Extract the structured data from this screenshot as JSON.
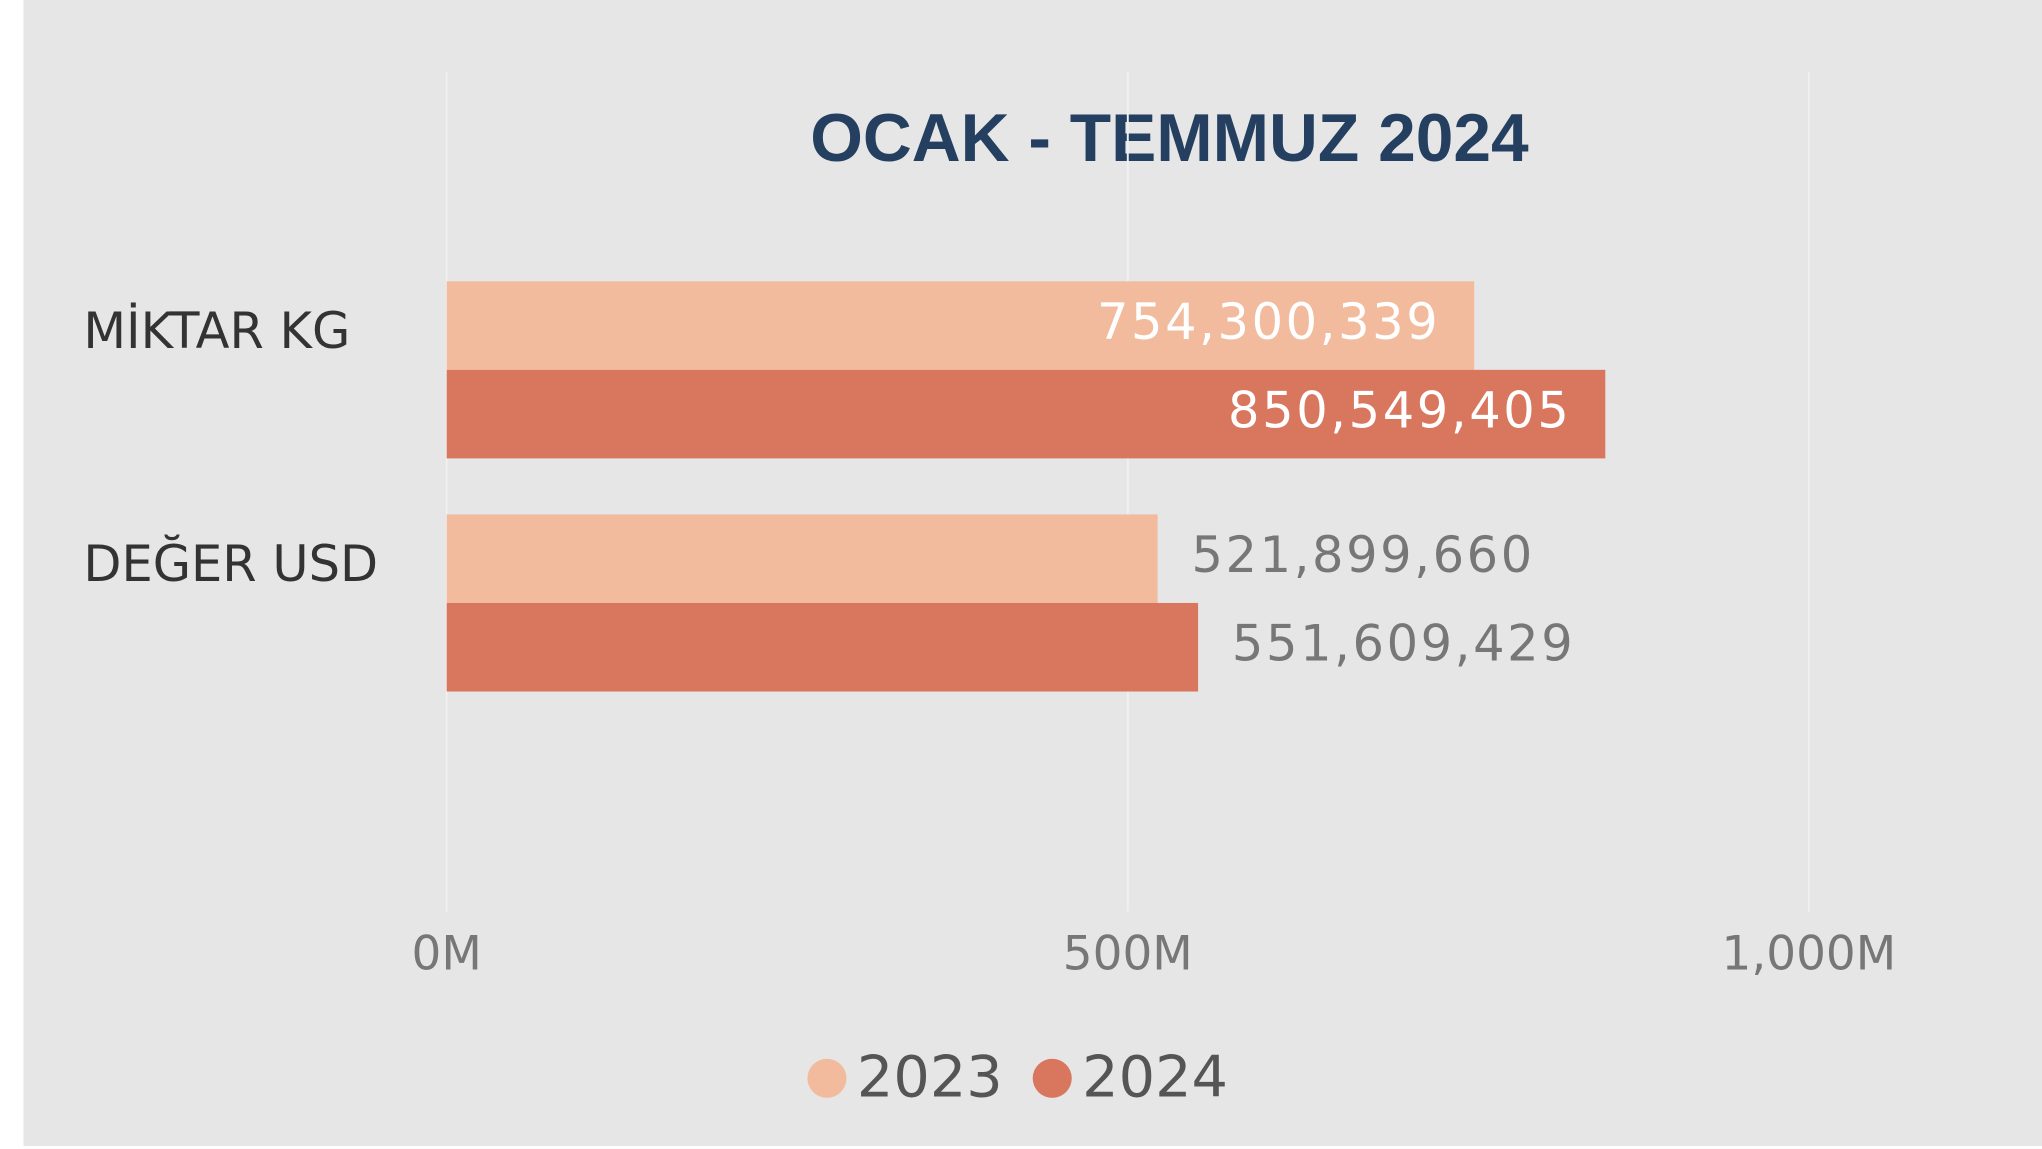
{
  "chart_data": {
    "type": "bar",
    "orientation": "horizontal",
    "title": "OCAK - TEMMUZ 2024",
    "categories": [
      "MİKTAR KG",
      "DEĞER USD"
    ],
    "series": [
      {
        "name": "2023",
        "color": "#f2bb9e",
        "values": [
          754300339,
          521899660
        ],
        "value_labels": [
          "754,300,339",
          "521,899,660"
        ]
      },
      {
        "name": "2024",
        "color": "#d9765e",
        "values": [
          850549405,
          551609429
        ],
        "value_labels": [
          "850,549,405",
          "551,609,429"
        ]
      }
    ],
    "xlim": [
      0,
      1000000000
    ],
    "xticks": [
      {
        "value": 0,
        "label": "0M"
      },
      {
        "value": 500000000,
        "label": "500M"
      },
      {
        "value": 1000000000,
        "label": "1,000M"
      }
    ],
    "grid": true,
    "legend": "bottom"
  }
}
